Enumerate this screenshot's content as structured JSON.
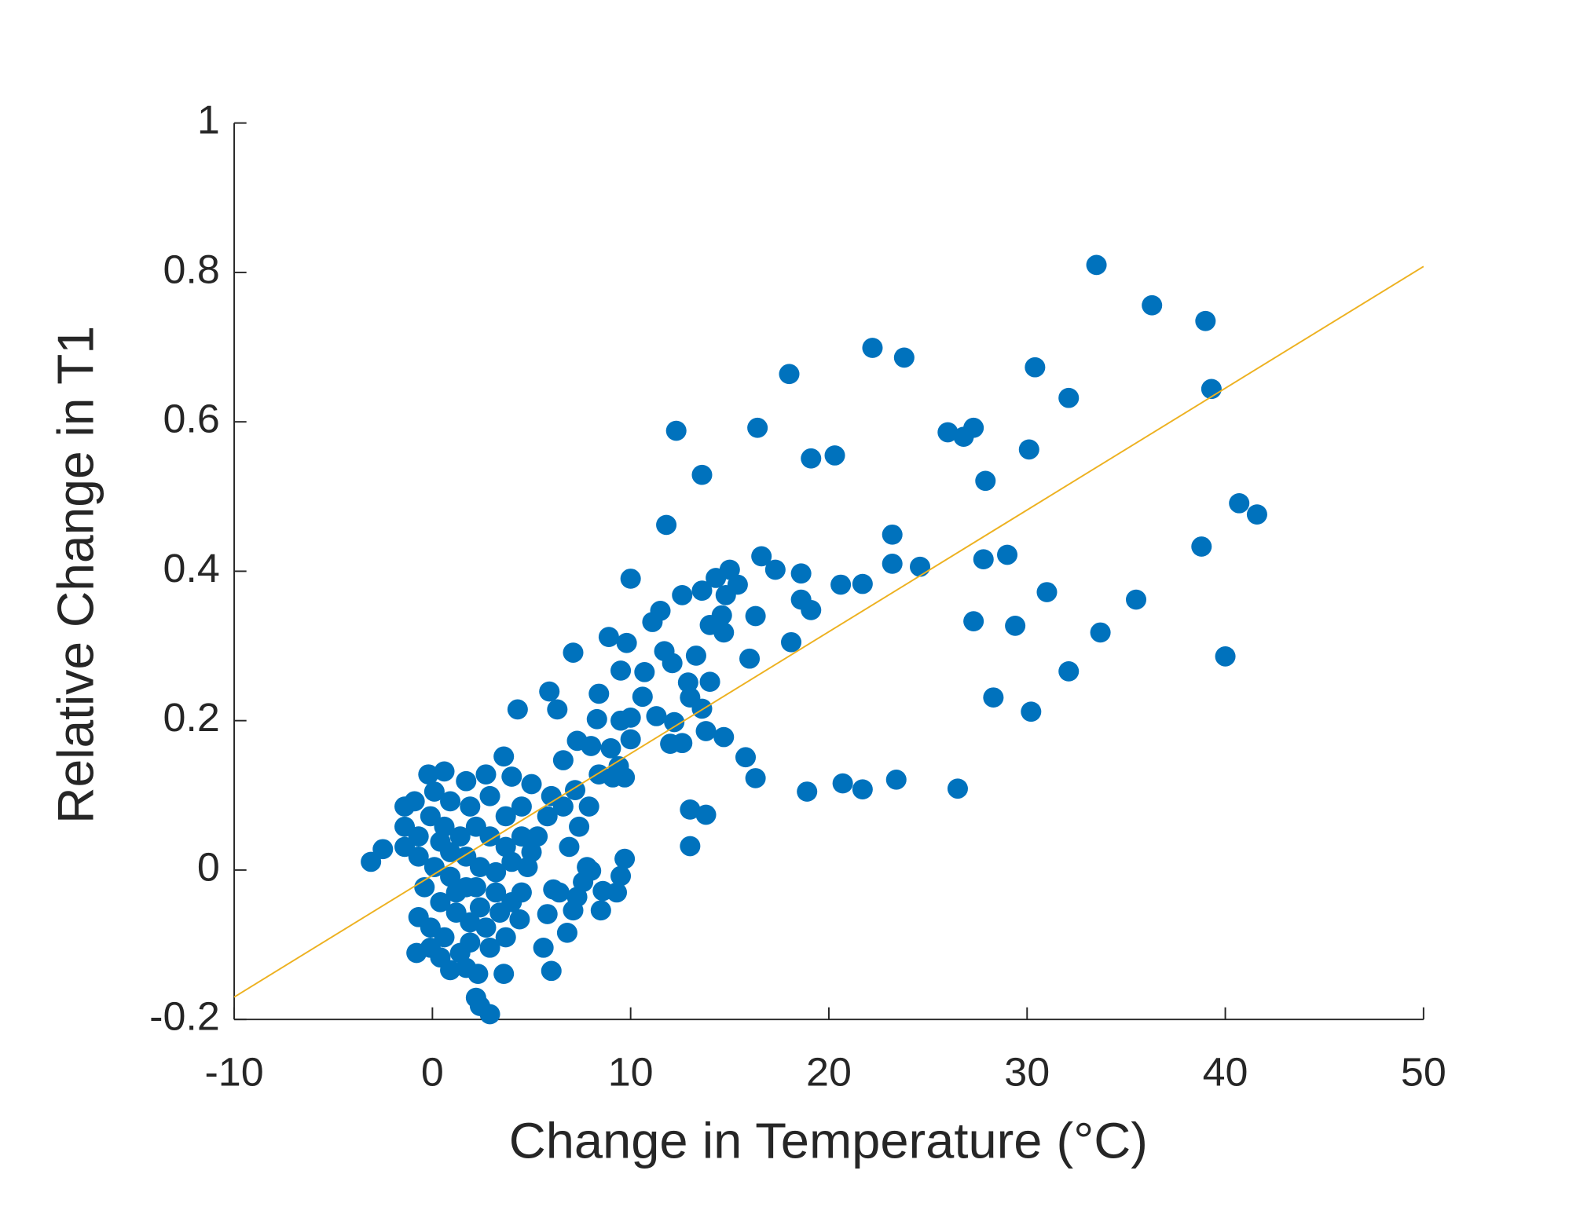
{
  "chart_data": {
    "type": "scatter",
    "xlabel": "Change in Temperature (°C)",
    "ylabel": "Relative Change in T1",
    "xlim": [
      -10,
      50
    ],
    "xticks": [
      -10,
      0,
      10,
      20,
      30,
      40,
      50
    ],
    "ylim": [
      -0.2,
      1
    ],
    "yticks": [
      -0.2,
      0,
      0.2,
      0.4,
      0.6,
      0.8,
      1
    ],
    "series": [
      {
        "color": "#0072BD",
        "x": [
          33.5,
          36.3,
          39.0,
          39.3,
          22.2,
          23.8,
          18.0,
          30.4,
          32.1,
          12.3,
          16.4,
          26.0,
          26.8,
          27.3,
          30.1,
          19.1,
          20.3,
          13.6,
          27.9,
          11.8,
          40.7,
          41.6,
          23.2,
          38.8,
          29.0,
          27.8,
          23.2,
          24.6,
          16.6,
          17.3,
          18.6,
          10.0,
          20.6,
          21.7,
          31.0,
          35.5,
          18.6,
          19.1,
          16.3,
          27.3,
          29.4,
          33.7,
          18.1,
          40.0,
          32.1,
          16.0,
          28.3,
          30.2,
          7.1,
          8.9,
          9.8,
          9.5,
          5.9,
          4.3,
          6.3,
          8.4,
          10.6,
          12.2,
          14.7,
          15.8,
          16.3,
          18.9,
          20.7,
          21.7,
          23.4,
          26.5,
          13.0,
          13.8,
          13.0,
          12.6,
          13.6,
          14.3,
          14.6,
          14.0,
          13.3,
          14.7,
          14.8,
          15.4,
          15.0,
          11.1,
          11.5,
          11.7,
          12.1,
          10.7,
          12.9,
          13.0,
          13.6,
          14.0,
          11.3,
          12.0,
          12.6,
          13.8,
          10.0,
          9.5,
          10.0,
          9.7,
          9.1,
          7.3,
          6.6,
          8.3,
          8.0,
          7.2,
          7.9,
          9.0,
          9.4,
          8.4,
          9.7,
          9.5,
          9.3,
          8.5,
          8.6,
          7.8,
          8.0,
          6.1,
          5.8,
          5.6,
          6.0,
          6.8,
          7.1,
          6.4,
          7.3,
          7.6,
          6.9,
          7.4,
          6.6,
          -3.1,
          -2.5,
          -0.8,
          2.2,
          2.4,
          2.9,
          3.6,
          2.3,
          0.9,
          1.7,
          0.4,
          -0.1,
          -0.7,
          -0.1,
          0.6,
          1.4,
          2.9,
          3.7,
          4.4,
          4.0,
          2.4,
          1.7,
          0.9,
          0.1,
          -0.7,
          -1.4,
          -1.4,
          -1.4,
          -0.9,
          -0.2,
          0.6,
          1.7,
          2.7,
          3.6,
          4.0,
          5.0,
          4.5,
          3.7,
          2.9,
          1.9,
          0.9,
          0.1,
          -0.1,
          0.6,
          1.4,
          2.2,
          2.9,
          3.7,
          4.5,
          5.0,
          4.8,
          4.0,
          3.2,
          2.4,
          1.7,
          0.9,
          0.4,
          -0.7,
          -0.4,
          0.4,
          1.2,
          1.9,
          2.7,
          3.4,
          3.2,
          2.2,
          1.2,
          1.9,
          4.5,
          5.3,
          5.8,
          6.0
        ],
        "values": [
          0.81,
          0.756,
          0.735,
          0.644,
          0.699,
          0.686,
          0.664,
          0.673,
          0.632,
          0.588,
          0.592,
          0.586,
          0.58,
          0.592,
          0.563,
          0.551,
          0.555,
          0.529,
          0.521,
          0.462,
          0.491,
          0.476,
          0.449,
          0.433,
          0.422,
          0.416,
          0.41,
          0.406,
          0.42,
          0.402,
          0.397,
          0.39,
          0.382,
          0.383,
          0.372,
          0.362,
          0.362,
          0.348,
          0.34,
          0.333,
          0.327,
          0.318,
          0.305,
          0.286,
          0.266,
          0.283,
          0.231,
          0.212,
          0.291,
          0.312,
          0.304,
          0.267,
          0.239,
          0.215,
          0.215,
          0.236,
          0.232,
          0.198,
          0.178,
          0.151,
          0.123,
          0.105,
          0.116,
          0.108,
          0.121,
          0.109,
          0.081,
          0.074,
          0.032,
          0.368,
          0.374,
          0.391,
          0.341,
          0.328,
          0.287,
          0.318,
          0.368,
          0.382,
          0.402,
          0.332,
          0.347,
          0.293,
          0.277,
          0.265,
          0.251,
          0.231,
          0.216,
          0.252,
          0.206,
          0.169,
          0.17,
          0.186,
          0.204,
          0.2,
          0.175,
          0.124,
          0.124,
          0.173,
          0.147,
          0.202,
          0.166,
          0.107,
          0.085,
          0.163,
          0.139,
          0.128,
          0.015,
          -0.008,
          -0.03,
          -0.054,
          -0.028,
          0.004,
          -0.001,
          -0.026,
          -0.059,
          -0.104,
          -0.135,
          -0.084,
          -0.054,
          -0.03,
          -0.036,
          -0.016,
          0.031,
          0.058,
          0.085,
          0.011,
          0.028,
          -0.111,
          -0.171,
          -0.182,
          -0.193,
          -0.139,
          -0.139,
          -0.134,
          -0.131,
          -0.117,
          -0.104,
          -0.063,
          -0.077,
          -0.09,
          -0.111,
          -0.104,
          -0.09,
          -0.066,
          -0.043,
          -0.05,
          -0.023,
          -0.009,
          0.004,
          0.018,
          0.031,
          0.085,
          0.058,
          0.092,
          0.128,
          0.132,
          0.119,
          0.128,
          0.152,
          0.125,
          0.115,
          0.085,
          0.072,
          0.099,
          0.085,
          0.092,
          0.105,
          0.072,
          0.058,
          0.045,
          0.058,
          0.045,
          0.031,
          0.045,
          0.024,
          0.004,
          0.011,
          -0.003,
          0.004,
          0.018,
          0.024,
          0.038,
          0.045,
          -0.023,
          -0.043,
          -0.057,
          -0.07,
          -0.077,
          -0.057,
          -0.03,
          -0.023,
          -0.03,
          -0.097,
          -0.03,
          0.045,
          0.072,
          0.099
        ]
      }
    ],
    "fit_line": {
      "color": "#EDB120",
      "x": [
        -10,
        50
      ],
      "values": [
        -0.17,
        0.808
      ]
    }
  }
}
